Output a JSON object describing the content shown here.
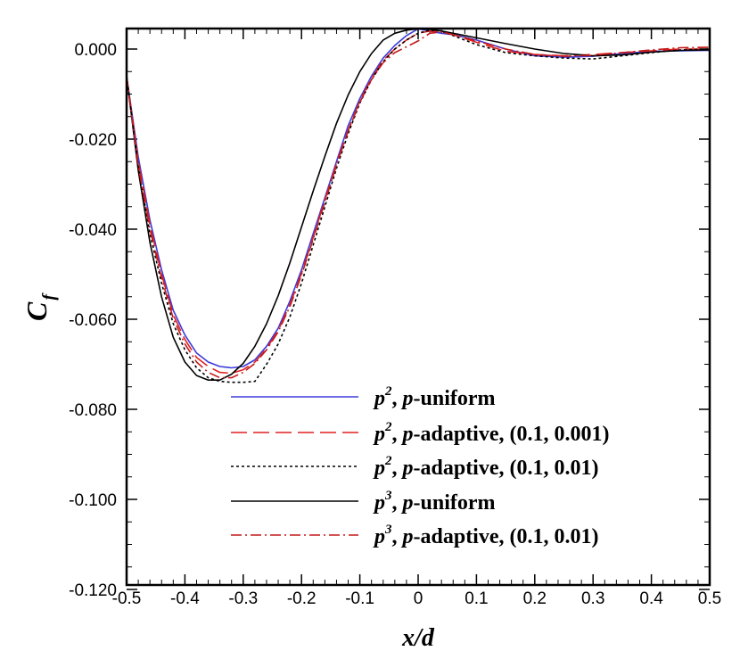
{
  "chart_data": {
    "type": "line",
    "xlabel": "x/d",
    "ylabel_main": "C",
    "ylabel_sub": "f",
    "xlim": [
      -0.5,
      0.5
    ],
    "ylim": [
      -0.12,
      0.004
    ],
    "xticks": [
      -0.5,
      -0.4,
      -0.3,
      -0.2,
      -0.1,
      0,
      0.1,
      0.2,
      0.3,
      0.4,
      0.5
    ],
    "xtick_labels": [
      "-0.5",
      "-0.4",
      "-0.3",
      "-0.2",
      "-0.1",
      "0",
      "0.1",
      "0.2",
      "0.3",
      "0.4",
      "0.5"
    ],
    "yticks": [
      0.0,
      -0.02,
      -0.04,
      -0.06,
      -0.08,
      -0.1,
      -0.12
    ],
    "ytick_labels": [
      "0.000",
      "-0.020",
      "-0.040",
      "-0.060",
      "-0.080",
      "-0.100",
      "-0.120"
    ],
    "grid": false,
    "legend_position": "bottom-right",
    "series": [
      {
        "order": "2",
        "rest": ", p-uniform",
        "color": "#3b3bdb",
        "dash": "",
        "points": [
          [
            -0.5,
            -0.006
          ],
          [
            -0.48,
            -0.024
          ],
          [
            -0.46,
            -0.038
          ],
          [
            -0.44,
            -0.049
          ],
          [
            -0.42,
            -0.058
          ],
          [
            -0.4,
            -0.0635
          ],
          [
            -0.38,
            -0.0675
          ],
          [
            -0.36,
            -0.0695
          ],
          [
            -0.34,
            -0.0705
          ],
          [
            -0.32,
            -0.0708
          ],
          [
            -0.3,
            -0.0705
          ],
          [
            -0.28,
            -0.069
          ],
          [
            -0.26,
            -0.066
          ],
          [
            -0.24,
            -0.062
          ],
          [
            -0.22,
            -0.056
          ],
          [
            -0.2,
            -0.049
          ],
          [
            -0.18,
            -0.041
          ],
          [
            -0.16,
            -0.033
          ],
          [
            -0.14,
            -0.025
          ],
          [
            -0.12,
            -0.017
          ],
          [
            -0.1,
            -0.011
          ],
          [
            -0.08,
            -0.006
          ],
          [
            -0.06,
            -0.002
          ],
          [
            -0.04,
            0.0008
          ],
          [
            -0.02,
            0.003
          ],
          [
            0.0,
            0.0045
          ],
          [
            0.02,
            0.004
          ],
          [
            0.04,
            0.0035
          ],
          [
            0.06,
            0.0032
          ],
          [
            0.1,
            0.002
          ],
          [
            0.15,
            0.0
          ],
          [
            0.2,
            -0.0015
          ],
          [
            0.25,
            -0.0018
          ],
          [
            0.3,
            -0.0016
          ],
          [
            0.35,
            -0.001
          ],
          [
            0.4,
            -0.0005
          ],
          [
            0.45,
            -0.0004
          ],
          [
            0.5,
            -0.0003
          ]
        ]
      },
      {
        "order": "2",
        "rest": ", p-adaptive, (0.1, 0.001)",
        "color": "#e02020",
        "dash": "18 7",
        "points": [
          [
            -0.5,
            -0.006
          ],
          [
            -0.48,
            -0.025
          ],
          [
            -0.46,
            -0.039
          ],
          [
            -0.44,
            -0.05
          ],
          [
            -0.42,
            -0.059
          ],
          [
            -0.4,
            -0.0645
          ],
          [
            -0.38,
            -0.0685
          ],
          [
            -0.36,
            -0.0705
          ],
          [
            -0.34,
            -0.0718
          ],
          [
            -0.32,
            -0.072
          ],
          [
            -0.3,
            -0.0712
          ],
          [
            -0.28,
            -0.0695
          ],
          [
            -0.26,
            -0.0665
          ],
          [
            -0.24,
            -0.0625
          ],
          [
            -0.22,
            -0.0568
          ],
          [
            -0.2,
            -0.0498
          ],
          [
            -0.18,
            -0.0418
          ],
          [
            -0.16,
            -0.0335
          ],
          [
            -0.14,
            -0.0255
          ],
          [
            -0.12,
            -0.018
          ],
          [
            -0.1,
            -0.0115
          ],
          [
            -0.08,
            -0.0065
          ],
          [
            -0.06,
            -0.0025
          ],
          [
            -0.04,
            0.0
          ],
          [
            -0.02,
            0.002
          ],
          [
            0.0,
            0.0035
          ],
          [
            0.02,
            0.004
          ],
          [
            0.04,
            0.0038
          ],
          [
            0.06,
            0.0032
          ],
          [
            0.1,
            0.0015
          ],
          [
            0.15,
            -0.0005
          ],
          [
            0.2,
            -0.0012
          ],
          [
            0.25,
            -0.0015
          ],
          [
            0.3,
            -0.0012
          ],
          [
            0.35,
            -0.0008
          ],
          [
            0.4,
            -0.0004
          ],
          [
            0.45,
            0.0
          ],
          [
            0.5,
            0.0
          ]
        ]
      },
      {
        "order": "2",
        "rest": ", p-adaptive, (0.1, 0.01)",
        "color": "#000000",
        "dash": "3 3",
        "points": [
          [
            -0.5,
            -0.006
          ],
          [
            -0.48,
            -0.026
          ],
          [
            -0.46,
            -0.041
          ],
          [
            -0.44,
            -0.052
          ],
          [
            -0.42,
            -0.061
          ],
          [
            -0.4,
            -0.0668
          ],
          [
            -0.38,
            -0.0708
          ],
          [
            -0.36,
            -0.073
          ],
          [
            -0.34,
            -0.0738
          ],
          [
            -0.32,
            -0.074
          ],
          [
            -0.3,
            -0.074
          ],
          [
            -0.28,
            -0.0738
          ],
          [
            -0.26,
            -0.07
          ],
          [
            -0.24,
            -0.0655
          ],
          [
            -0.22,
            -0.0595
          ],
          [
            -0.2,
            -0.052
          ],
          [
            -0.18,
            -0.0435
          ],
          [
            -0.16,
            -0.035
          ],
          [
            -0.14,
            -0.0265
          ],
          [
            -0.12,
            -0.0188
          ],
          [
            -0.1,
            -0.012
          ],
          [
            -0.08,
            -0.0068
          ],
          [
            -0.06,
            -0.0028
          ],
          [
            -0.04,
            0.0
          ],
          [
            -0.02,
            0.002
          ],
          [
            0.0,
            0.0035
          ],
          [
            0.02,
            0.0042
          ],
          [
            0.04,
            0.004
          ],
          [
            0.06,
            0.003
          ],
          [
            0.1,
            0.001
          ],
          [
            0.15,
            -0.0008
          ],
          [
            0.2,
            -0.0015
          ],
          [
            0.25,
            -0.002
          ],
          [
            0.3,
            -0.0022
          ],
          [
            0.35,
            -0.0015
          ],
          [
            0.4,
            -0.0008
          ],
          [
            0.45,
            -0.0002
          ],
          [
            0.5,
            0.0
          ]
        ]
      },
      {
        "order": "3",
        "rest": ", p-uniform",
        "color": "#000000",
        "dash": "",
        "points": [
          [
            -0.5,
            -0.006
          ],
          [
            -0.48,
            -0.027
          ],
          [
            -0.46,
            -0.043
          ],
          [
            -0.44,
            -0.055
          ],
          [
            -0.42,
            -0.064
          ],
          [
            -0.4,
            -0.0695
          ],
          [
            -0.38,
            -0.0725
          ],
          [
            -0.36,
            -0.0735
          ],
          [
            -0.34,
            -0.0735
          ],
          [
            -0.32,
            -0.0722
          ],
          [
            -0.3,
            -0.0698
          ],
          [
            -0.28,
            -0.066
          ],
          [
            -0.26,
            -0.061
          ],
          [
            -0.24,
            -0.0548
          ],
          [
            -0.22,
            -0.0475
          ],
          [
            -0.2,
            -0.0395
          ],
          [
            -0.18,
            -0.0315
          ],
          [
            -0.16,
            -0.0238
          ],
          [
            -0.14,
            -0.0165
          ],
          [
            -0.12,
            -0.0102
          ],
          [
            -0.1,
            -0.005
          ],
          [
            -0.08,
            -0.001
          ],
          [
            -0.06,
            0.002
          ],
          [
            -0.04,
            0.0035
          ],
          [
            -0.02,
            0.0042
          ],
          [
            0.0,
            0.0045
          ],
          [
            0.02,
            0.0044
          ],
          [
            0.04,
            0.004
          ],
          [
            0.06,
            0.0035
          ],
          [
            0.1,
            0.0025
          ],
          [
            0.15,
            0.0012
          ],
          [
            0.2,
            0.0
          ],
          [
            0.25,
            -0.001
          ],
          [
            0.3,
            -0.0015
          ],
          [
            0.35,
            -0.0013
          ],
          [
            0.4,
            -0.0007
          ],
          [
            0.45,
            -0.0003
          ],
          [
            0.5,
            -0.0002
          ]
        ]
      },
      {
        "order": "3",
        "rest": ", p-adaptive, (0.1, 0.01)",
        "color": "#c41a1a",
        "dash": "12 4 2 4",
        "points": [
          [
            -0.5,
            -0.006
          ],
          [
            -0.48,
            -0.026
          ],
          [
            -0.46,
            -0.04
          ],
          [
            -0.44,
            -0.0508
          ],
          [
            -0.42,
            -0.0598
          ],
          [
            -0.4,
            -0.0655
          ],
          [
            -0.38,
            -0.0695
          ],
          [
            -0.36,
            -0.0718
          ],
          [
            -0.34,
            -0.073
          ],
          [
            -0.32,
            -0.073
          ],
          [
            -0.3,
            -0.0718
          ],
          [
            -0.28,
            -0.0698
          ],
          [
            -0.26,
            -0.0668
          ],
          [
            -0.24,
            -0.0628
          ],
          [
            -0.22,
            -0.0572
          ],
          [
            -0.2,
            -0.0502
          ],
          [
            -0.18,
            -0.0422
          ],
          [
            -0.16,
            -0.034
          ],
          [
            -0.14,
            -0.0258
          ],
          [
            -0.12,
            -0.0182
          ],
          [
            -0.1,
            -0.0118
          ],
          [
            -0.08,
            -0.0068
          ],
          [
            -0.06,
            -0.003
          ],
          [
            -0.04,
            -0.0008
          ],
          [
            -0.02,
            0.0005
          ],
          [
            0.0,
            0.0018
          ],
          [
            0.02,
            0.0035
          ],
          [
            0.04,
            0.0038
          ],
          [
            0.06,
            0.0032
          ],
          [
            0.1,
            0.0018
          ],
          [
            0.15,
            0.0
          ],
          [
            0.2,
            -0.0012
          ],
          [
            0.25,
            -0.0016
          ],
          [
            0.3,
            -0.0014
          ],
          [
            0.35,
            -0.0008
          ],
          [
            0.4,
            -0.0002
          ],
          [
            0.45,
            0.0003
          ],
          [
            0.5,
            0.0004
          ]
        ]
      }
    ]
  }
}
